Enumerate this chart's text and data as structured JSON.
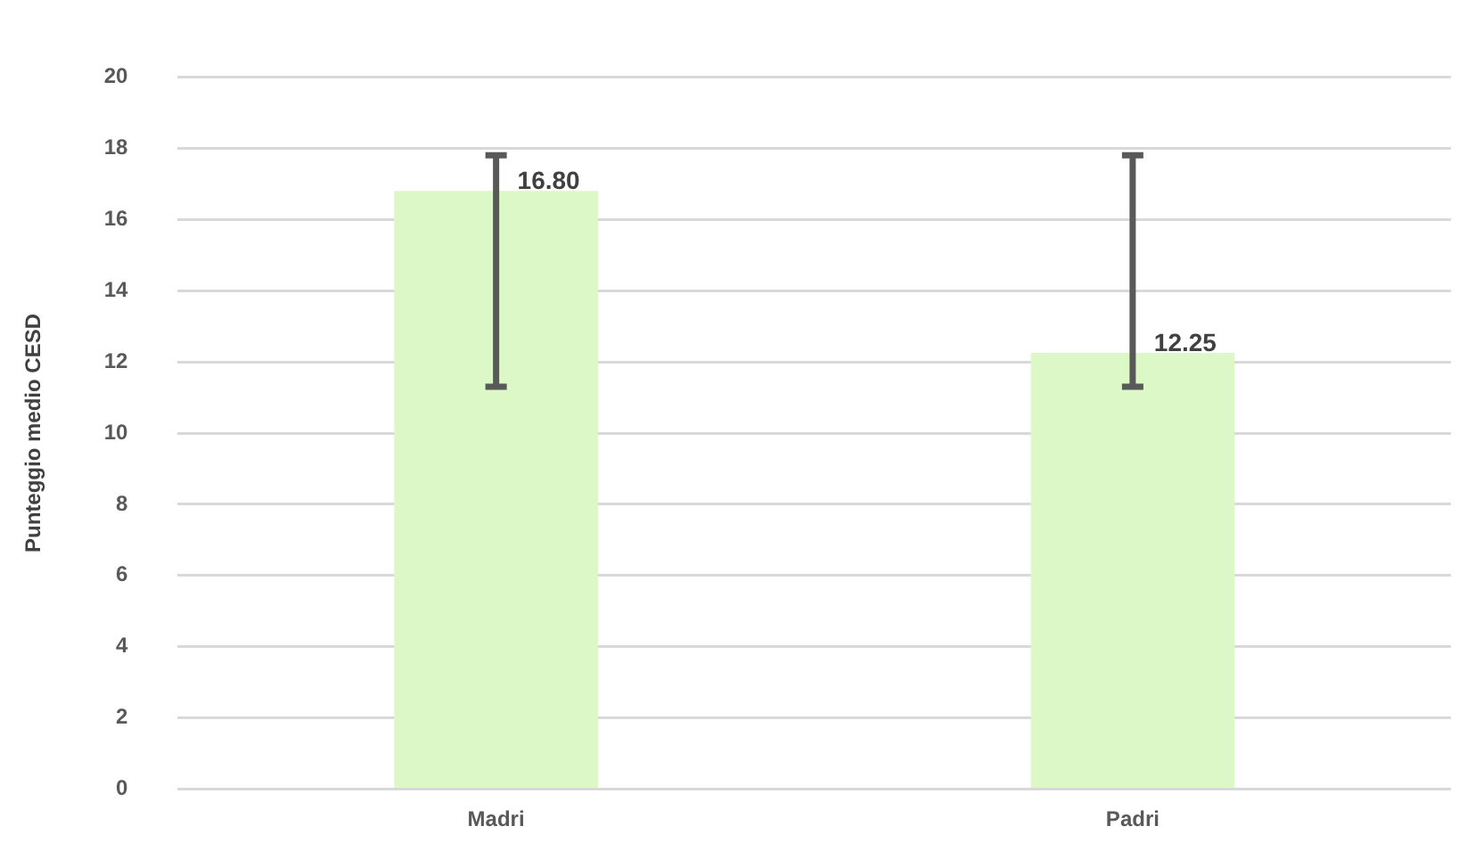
{
  "chart_data": {
    "type": "bar",
    "ylabel": "Punteggio medio CESD",
    "categories": [
      "Madri",
      "Padri"
    ],
    "values": [
      16.8,
      12.25
    ],
    "color": "#dcf8c6",
    "errors": [
      [
        11.3,
        17.8
      ],
      [
        11.3,
        17.8
      ]
    ],
    "value_labels": [
      "16.80",
      "12.25"
    ],
    "ylim": [
      0,
      20
    ],
    "yticks": [
      0,
      2,
      4,
      6,
      8,
      10,
      12,
      14,
      16,
      18,
      20
    ],
    "grid": "y",
    "legend": false
  }
}
